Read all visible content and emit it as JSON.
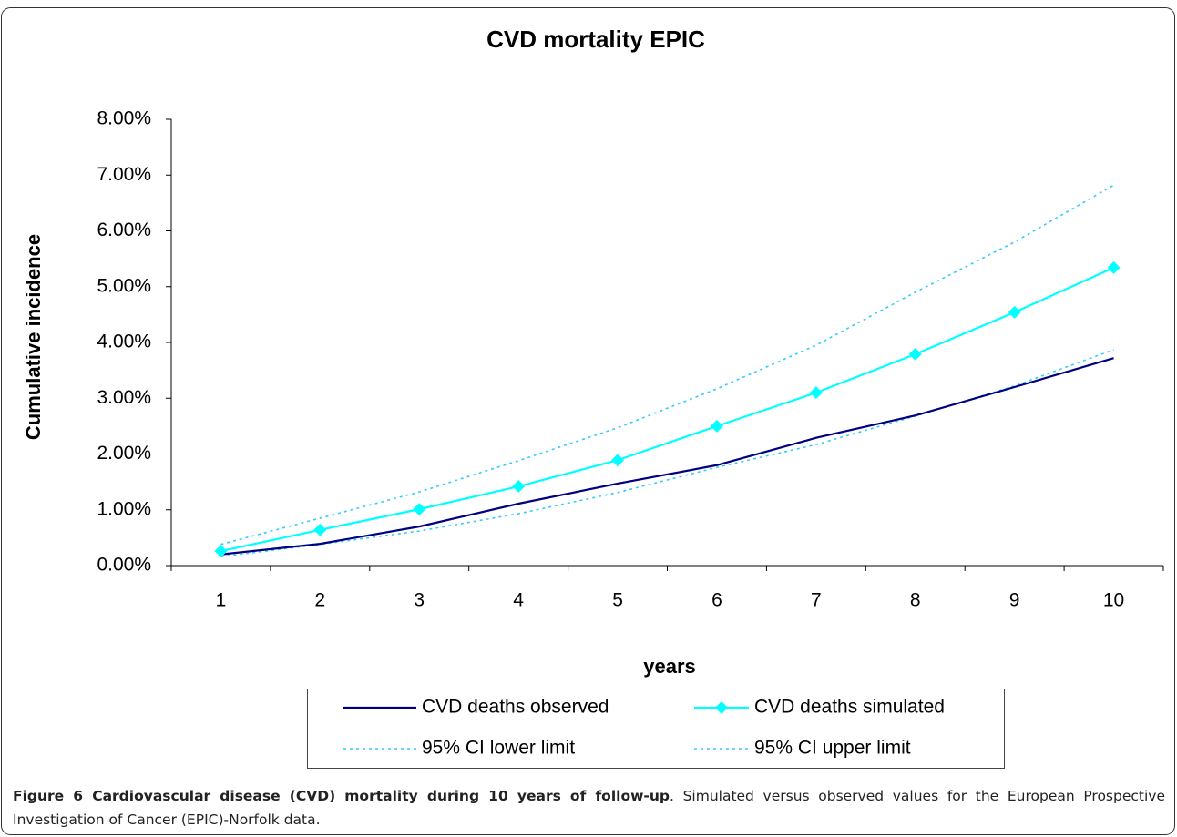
{
  "chart_data": {
    "type": "line",
    "title": "CVD mortality EPIC",
    "x_label": "years",
    "y_label": "Cumulative incidence",
    "categories": [
      "1",
      "2",
      "3",
      "4",
      "5",
      "6",
      "7",
      "8",
      "9",
      "10"
    ],
    "ylim": [
      0,
      8
    ],
    "yticks": [
      {
        "value": 0,
        "label": "0.00%"
      },
      {
        "value": 1,
        "label": "1.00%"
      },
      {
        "value": 2,
        "label": "2.00%"
      },
      {
        "value": 3,
        "label": "3.00%"
      },
      {
        "value": 4,
        "label": "4.00%"
      },
      {
        "value": 5,
        "label": "5.00%"
      },
      {
        "value": 6,
        "label": "6.00%"
      },
      {
        "value": 7,
        "label": "7.00%"
      },
      {
        "value": 8,
        "label": "8.00%"
      }
    ],
    "grid": false,
    "series": [
      {
        "name": "CVD deaths observed",
        "color": "#000080",
        "style": "solid",
        "marker": "none",
        "values": [
          0.2,
          0.39,
          0.7,
          1.11,
          1.47,
          1.8,
          2.29,
          2.69,
          3.2,
          3.72
        ]
      },
      {
        "name": "CVD deaths simulated",
        "color": "#00ffff",
        "style": "solid",
        "marker": "diamond",
        "values": [
          0.26,
          0.64,
          1.01,
          1.42,
          1.89,
          2.5,
          3.1,
          3.79,
          4.54,
          5.34
        ]
      },
      {
        "name": "95% CI lower limit",
        "color": "#33ccff",
        "style": "dotted",
        "marker": "none",
        "values": [
          0.16,
          0.38,
          0.62,
          0.93,
          1.31,
          1.76,
          2.17,
          2.68,
          3.22,
          3.87
        ]
      },
      {
        "name": "95% CI upper limit",
        "color": "#33ccff",
        "style": "dotted",
        "marker": "none",
        "values": [
          0.38,
          0.85,
          1.32,
          1.88,
          2.47,
          3.17,
          3.95,
          4.9,
          5.8,
          6.82
        ]
      }
    ]
  },
  "caption": {
    "label": "Figure 6 Cardiovascular disease (CVD) mortality during 10 years of follow-up",
    "text": ". Simulated versus observed values for the European Prospective Investigation of Cancer (EPIC)-Norfolk data."
  }
}
